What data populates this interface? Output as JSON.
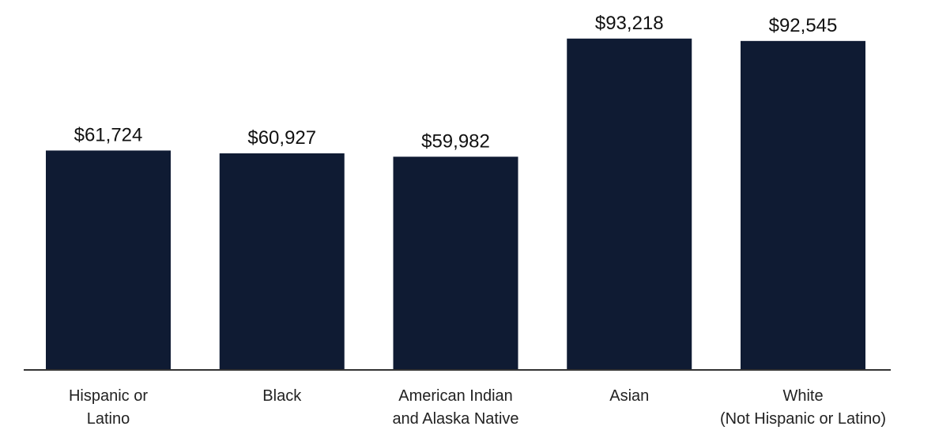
{
  "chart_data": {
    "type": "bar",
    "title": "",
    "xlabel": "",
    "ylabel": "",
    "ylim": [
      0,
      97400
    ],
    "grid": false,
    "categories": [
      [
        "Hispanic or",
        "Latino"
      ],
      [
        "Black"
      ],
      [
        "American Indian",
        "and Alaska Native"
      ],
      [
        "Asian"
      ],
      [
        "White",
        "(Not Hispanic or Latino)"
      ]
    ],
    "values": [
      61724,
      60927,
      59982,
      93218,
      92545
    ],
    "value_labels": [
      "$61,724",
      "$60,927",
      "$59,982",
      "$93,218",
      "$92,545"
    ],
    "colors": {
      "bar": "#0f1b33",
      "axis": "#333333"
    }
  }
}
